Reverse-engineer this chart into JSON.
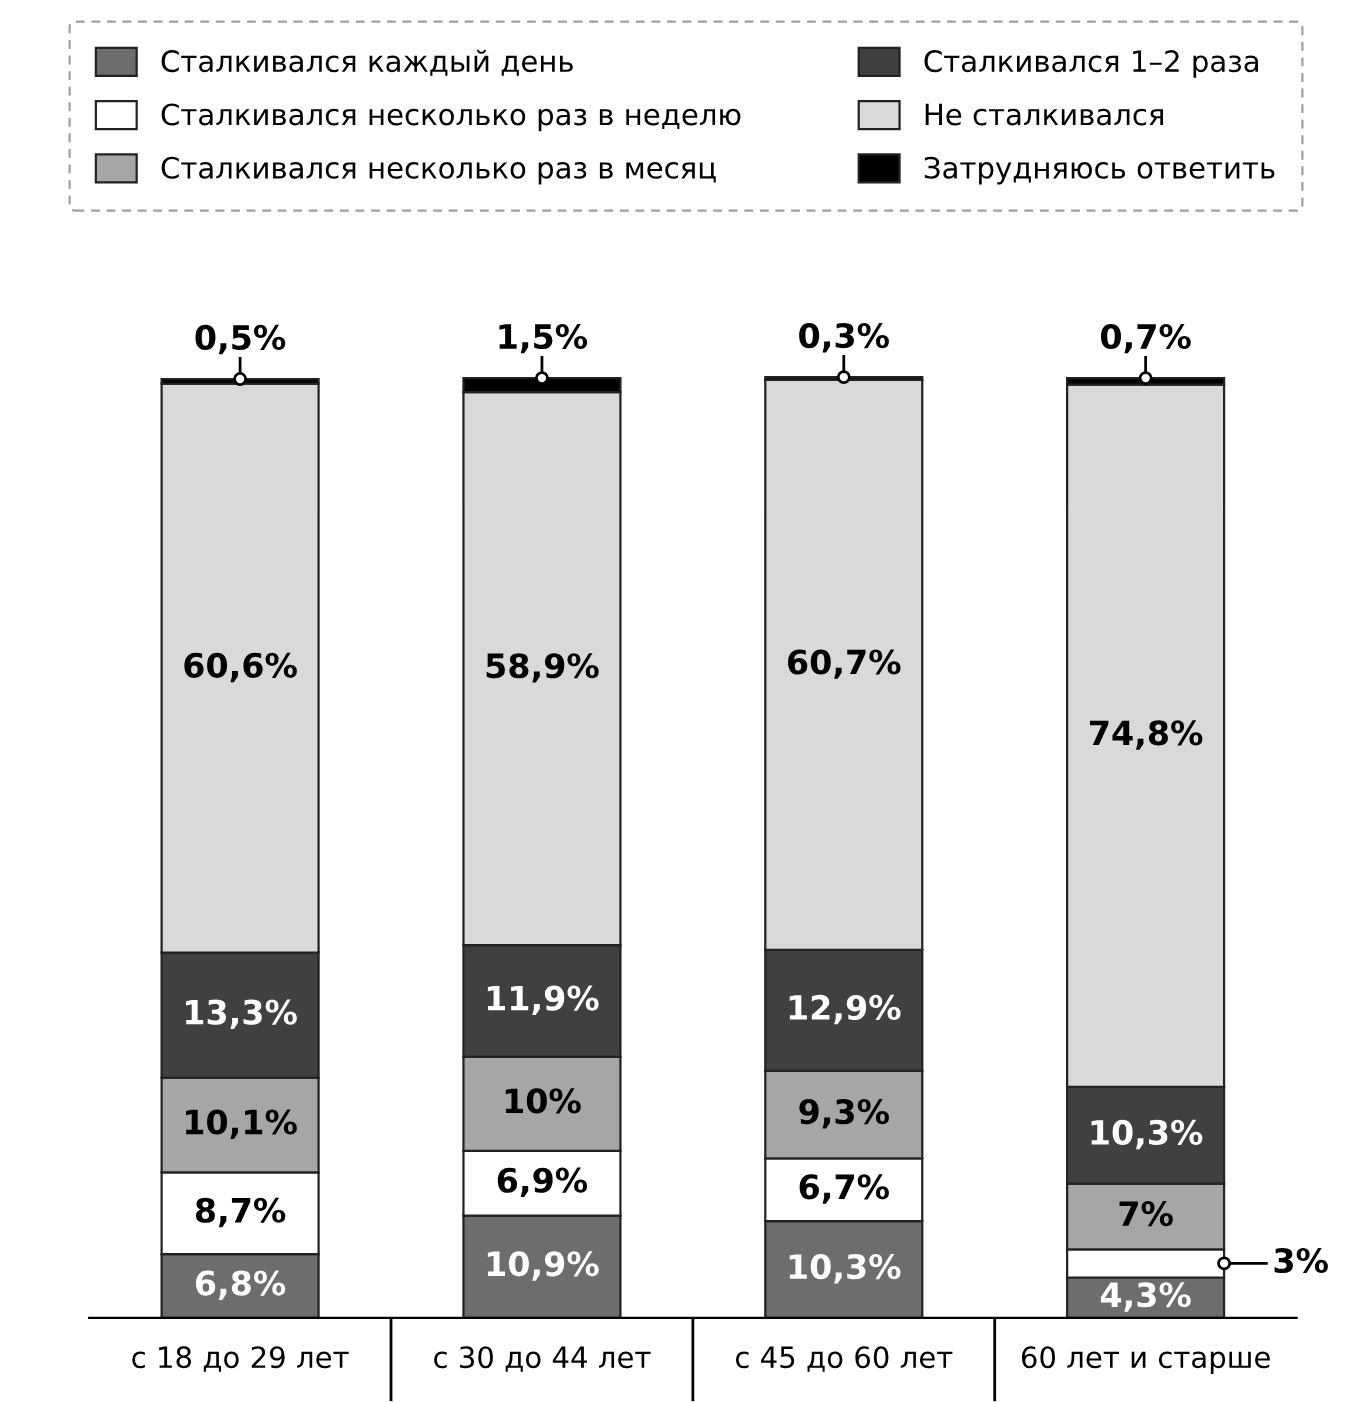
{
  "chart_data": {
    "type": "bar",
    "stacked": true,
    "legend": "top",
    "categories": [
      "с 18 до 29 лет",
      "с 30 до 44 лет",
      "с 45 до 60 лет",
      "60 лет и старше"
    ],
    "series": [
      {
        "name": "Сталкивался каждый день",
        "color": "#6d6d6d",
        "values": [
          6.8,
          10.9,
          10.3,
          4.3
        ],
        "value_labels": [
          "6,8%",
          "10,9%",
          "10,3%",
          "4,3%"
        ]
      },
      {
        "name": "Сталкивался несколько раз в неделю",
        "color": "#ffffff",
        "values": [
          8.7,
          6.9,
          6.7,
          3
        ],
        "value_labels": [
          "8,7%",
          "6,9%",
          "6,7%",
          "3%"
        ]
      },
      {
        "name": "Сталкивался несколько раз в месяц",
        "color": "#a6a6a6",
        "values": [
          10.1,
          10,
          9.3,
          7
        ],
        "value_labels": [
          "10,1%",
          "10%",
          "9,3%",
          "7%"
        ]
      },
      {
        "name": "Сталкивался 1–2 раза",
        "color": "#404040",
        "values": [
          13.3,
          11.9,
          12.9,
          10.3
        ],
        "value_labels": [
          "13,3%",
          "11,9%",
          "12,9%",
          "10,3%"
        ]
      },
      {
        "name": "Не сталкивался",
        "color": "#d9d9d9",
        "values": [
          60.6,
          58.9,
          60.7,
          74.8
        ],
        "value_labels": [
          "60,6%",
          "58,9%",
          "60,7%",
          "74,8%"
        ]
      },
      {
        "name": "Затрудняюсь ответить",
        "color": "#000000",
        "values": [
          0.5,
          1.5,
          0.3,
          0.7
        ],
        "value_labels": [
          "0,5%",
          "1,5%",
          "0,3%",
          "0,7%"
        ]
      }
    ]
  }
}
